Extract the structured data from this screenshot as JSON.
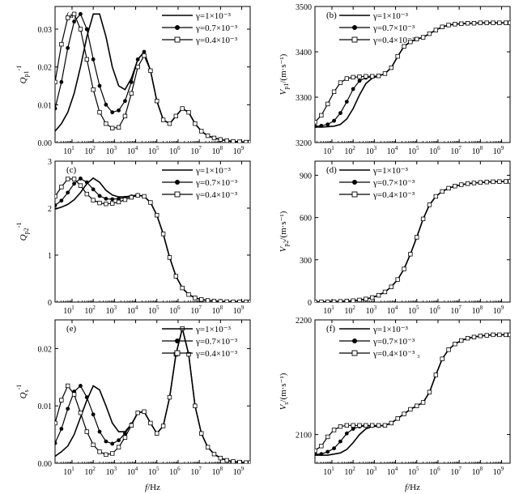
{
  "x_axis": {
    "label_var": "f",
    "label_unit": "/Hz",
    "decades": [
      1,
      2,
      3,
      4,
      5,
      6,
      7,
      8,
      9
    ],
    "range_log10": [
      0.2,
      9.4
    ]
  },
  "tick_base": "10",
  "panels": [
    {
      "id": "a",
      "tag": "(a)",
      "ylabel": "Q",
      "ylabel_sup": "-1",
      "ylabel_sub": "p1",
      "ylim": [
        0,
        0.036
      ],
      "yticks": [
        0,
        0.01,
        0.02,
        0.03
      ],
      "yticklabels": [
        "0.00",
        "0.01",
        "0.02",
        "0.03"
      ],
      "legend": [
        "γ=1×10⁻³",
        "γ=0.7×10⁻³",
        "γ=0.4×10⁻³"
      ]
    },
    {
      "id": "b",
      "tag": "(b)",
      "ylabel": "V",
      "ylabel_sub": "p1",
      "ylabel_unit": "/(m·s⁻¹)",
      "ylim": [
        3200,
        3500
      ],
      "yticks": [
        3200,
        3300,
        3400,
        3500
      ],
      "yticklabels": [
        "3200",
        "3300",
        "3400",
        "3500"
      ],
      "legend": [
        "γ=1×10⁻³",
        "γ=0.7×10⁻³",
        "γ=0.4×10⁻³"
      ]
    },
    {
      "id": "c",
      "tag": "(c)",
      "ylabel": "Q",
      "ylabel_sup": "-1",
      "ylabel_sub": "p2",
      "ylim": [
        0,
        3
      ],
      "yticks": [
        0,
        1,
        2,
        3
      ],
      "yticklabels": [
        "0",
        "1",
        "2",
        "3"
      ],
      "legend": [
        "γ=1×10⁻³",
        "γ=0.7×10⁻³",
        "γ=0.4×10⁻³"
      ]
    },
    {
      "id": "d",
      "tag": "(d)",
      "ylabel": "V",
      "ylabel_sub": "p2",
      "ylabel_unit": "/(m·s⁻¹)",
      "ylim": [
        0,
        1000
      ],
      "yticks": [
        0,
        300,
        600,
        900
      ],
      "yticklabels": [
        "0",
        "300",
        "600",
        "900"
      ],
      "legend": [
        "γ=1×10⁻³",
        "γ=0.7×10⁻³",
        "γ=0.4×10⁻³"
      ]
    },
    {
      "id": "e",
      "tag": "(e)",
      "ylabel": "Q",
      "ylabel_sup": "-1",
      "ylabel_sub": "s",
      "ylim": [
        0,
        0.025
      ],
      "yticks": [
        0,
        0.01,
        0.02
      ],
      "yticklabels": [
        "0.00",
        "0.01",
        "0.02"
      ],
      "legend": [
        "γ=1×10⁻³",
        "γ=0.7×10⁻³",
        "γ=0.4×10⁻³"
      ]
    },
    {
      "id": "f",
      "tag": "(f)",
      "ylabel": "V",
      "ylabel_sub": "s",
      "ylabel_unit": "/(m·s⁻¹)",
      "ylim": [
        2075,
        2200
      ],
      "yticks": [
        2100,
        2200
      ],
      "yticklabels": [
        "2100",
        "2200"
      ],
      "legend": [
        "γ=1×10⁻³",
        "γ=0.7×10⁻³",
        "γ=0.4×10⁻³ ₃"
      ]
    }
  ],
  "chart_data": [
    {
      "panel": "a",
      "type": "line",
      "x_scale": "log10",
      "title": "(a)",
      "xlabel": "f/Hz",
      "ylabel": "Q_p1^-1",
      "ylim": [
        0,
        0.036
      ],
      "x": [
        0.2,
        0.5,
        0.8,
        1.1,
        1.4,
        1.7,
        2.0,
        2.3,
        2.6,
        2.9,
        3.2,
        3.5,
        3.8,
        4.1,
        4.4,
        4.7,
        5.0,
        5.3,
        5.6,
        5.9,
        6.2,
        6.5,
        6.8,
        7.1,
        7.4,
        7.7,
        8.0,
        8.3,
        8.6,
        8.9,
        9.2,
        9.4
      ],
      "series": [
        {
          "name": "γ=1×10⁻³",
          "marker": "none",
          "values": [
            0.003,
            0.005,
            0.008,
            0.013,
            0.02,
            0.028,
            0.034,
            0.034,
            0.028,
            0.02,
            0.015,
            0.014,
            0.017,
            0.022,
            0.024,
            0.019,
            0.011,
            0.006,
            0.005,
            0.007,
            0.009,
            0.008,
            0.005,
            0.003,
            0.0018,
            0.0012,
            0.0008,
            0.0005,
            0.0003,
            0.0002,
            0.0001,
            0.0001
          ]
        },
        {
          "name": "γ=0.7×10⁻³",
          "marker": "filled-circle",
          "values": [
            0.009,
            0.016,
            0.025,
            0.032,
            0.034,
            0.03,
            0.022,
            0.015,
            0.01,
            0.008,
            0.0085,
            0.011,
            0.016,
            0.022,
            0.024,
            0.019,
            0.011,
            0.006,
            0.005,
            0.007,
            0.009,
            0.008,
            0.005,
            0.003,
            0.0018,
            0.0012,
            0.0008,
            0.0005,
            0.0003,
            0.0002,
            0.0001,
            0.0001
          ]
        },
        {
          "name": "γ=0.4×10⁻³",
          "marker": "open-square",
          "values": [
            0.016,
            0.026,
            0.033,
            0.034,
            0.03,
            0.022,
            0.014,
            0.008,
            0.005,
            0.0038,
            0.004,
            0.007,
            0.013,
            0.02,
            0.023,
            0.019,
            0.011,
            0.006,
            0.005,
            0.007,
            0.009,
            0.008,
            0.005,
            0.003,
            0.0018,
            0.0012,
            0.0008,
            0.0005,
            0.0003,
            0.0002,
            0.0001,
            0.0001
          ]
        }
      ]
    },
    {
      "panel": "b",
      "type": "line",
      "x_scale": "log10",
      "title": "(b)",
      "xlabel": "f/Hz",
      "ylabel": "V_p1/(m·s⁻¹)",
      "ylim": [
        3200,
        3500
      ],
      "x": [
        0.2,
        0.5,
        0.8,
        1.1,
        1.4,
        1.7,
        2.0,
        2.3,
        2.6,
        2.9,
        3.2,
        3.5,
        3.8,
        4.1,
        4.4,
        4.7,
        5.0,
        5.3,
        5.6,
        5.9,
        6.2,
        6.5,
        6.8,
        7.1,
        7.4,
        7.7,
        8.0,
        8.3,
        8.6,
        8.9,
        9.2,
        9.4
      ],
      "series": [
        {
          "name": "γ=1×10⁻³",
          "marker": "none",
          "values": [
            3234,
            3234,
            3235,
            3236,
            3240,
            3252,
            3275,
            3305,
            3330,
            3342,
            3347,
            3352,
            3365,
            3390,
            3412,
            3422,
            3428,
            3432,
            3440,
            3448,
            3455,
            3459,
            3461,
            3462,
            3463,
            3463,
            3464,
            3464,
            3464,
            3464,
            3464,
            3464
          ]
        },
        {
          "name": "γ=0.7×10⁻³",
          "marker": "filled-circle",
          "values": [
            3236,
            3237,
            3240,
            3248,
            3265,
            3290,
            3318,
            3336,
            3343,
            3345,
            3347,
            3352,
            3365,
            3390,
            3412,
            3422,
            3428,
            3432,
            3440,
            3448,
            3455,
            3459,
            3461,
            3462,
            3463,
            3463,
            3464,
            3464,
            3464,
            3464,
            3464,
            3464
          ]
        },
        {
          "name": "γ=0.4×10⁻³",
          "marker": "open-square",
          "values": [
            3245,
            3260,
            3285,
            3312,
            3332,
            3341,
            3344,
            3345,
            3346,
            3346,
            3347,
            3352,
            3365,
            3390,
            3412,
            3422,
            3428,
            3432,
            3440,
            3448,
            3455,
            3459,
            3461,
            3462,
            3463,
            3463,
            3464,
            3464,
            3464,
            3464,
            3464,
            3464
          ]
        }
      ]
    },
    {
      "panel": "c",
      "type": "line",
      "x_scale": "log10",
      "title": "(c)",
      "xlabel": "f/Hz",
      "ylabel": "Q_p2^-1",
      "ylim": [
        0,
        3
      ],
      "x": [
        0.2,
        0.5,
        0.8,
        1.1,
        1.4,
        1.7,
        2.0,
        2.3,
        2.6,
        2.9,
        3.2,
        3.5,
        3.8,
        4.1,
        4.4,
        4.7,
        5.0,
        5.3,
        5.6,
        5.9,
        6.2,
        6.5,
        6.8,
        7.1,
        7.4,
        7.7,
        8.0,
        8.3,
        8.6,
        8.9,
        9.2,
        9.4
      ],
      "series": [
        {
          "name": "γ=1×10⁻³",
          "marker": "none",
          "values": [
            1.98,
            2.02,
            2.08,
            2.18,
            2.33,
            2.52,
            2.64,
            2.55,
            2.38,
            2.28,
            2.24,
            2.24,
            2.26,
            2.28,
            2.25,
            2.12,
            1.85,
            1.45,
            0.95,
            0.55,
            0.3,
            0.16,
            0.09,
            0.055,
            0.035,
            0.022,
            0.014,
            0.009,
            0.006,
            0.004,
            0.003,
            0.002
          ]
        },
        {
          "name": "γ=0.7×10⁻³",
          "marker": "filled-circle",
          "values": [
            2.06,
            2.16,
            2.33,
            2.52,
            2.63,
            2.55,
            2.4,
            2.26,
            2.2,
            2.19,
            2.2,
            2.22,
            2.25,
            2.28,
            2.25,
            2.12,
            1.85,
            1.45,
            0.95,
            0.55,
            0.3,
            0.16,
            0.09,
            0.055,
            0.035,
            0.022,
            0.014,
            0.009,
            0.006,
            0.004,
            0.003,
            0.002
          ]
        },
        {
          "name": "γ=0.4×10⁻³",
          "marker": "open-square",
          "values": [
            2.25,
            2.45,
            2.62,
            2.62,
            2.48,
            2.3,
            2.17,
            2.11,
            2.09,
            2.1,
            2.13,
            2.18,
            2.23,
            2.27,
            2.25,
            2.12,
            1.85,
            1.45,
            0.95,
            0.55,
            0.3,
            0.16,
            0.09,
            0.055,
            0.035,
            0.022,
            0.014,
            0.009,
            0.006,
            0.004,
            0.003,
            0.002
          ]
        }
      ]
    },
    {
      "panel": "d",
      "type": "line",
      "x_scale": "log10",
      "title": "(d)",
      "xlabel": "f/Hz",
      "ylabel": "V_p2/(m·s⁻¹)",
      "ylim": [
        0,
        1000
      ],
      "x": [
        0.2,
        0.5,
        0.8,
        1.1,
        1.4,
        1.7,
        2.0,
        2.3,
        2.6,
        2.9,
        3.2,
        3.5,
        3.8,
        4.1,
        4.4,
        4.7,
        5.0,
        5.3,
        5.6,
        5.9,
        6.2,
        6.5,
        6.8,
        7.1,
        7.4,
        7.7,
        8.0,
        8.3,
        8.6,
        8.9,
        9.2,
        9.4
      ],
      "series": [
        {
          "name": "γ=1×10⁻³",
          "marker": "none",
          "values": [
            1,
            2,
            2,
            3,
            5,
            7,
            10,
            15,
            22,
            32,
            48,
            72,
            108,
            160,
            235,
            340,
            460,
            590,
            690,
            750,
            785,
            808,
            823,
            833,
            840,
            845,
            849,
            852,
            854,
            855,
            856,
            857
          ]
        },
        {
          "name": "γ=0.7×10⁻³",
          "marker": "filled-circle",
          "values": [
            1,
            2,
            2,
            3,
            5,
            7,
            10,
            15,
            22,
            32,
            48,
            72,
            108,
            160,
            235,
            340,
            460,
            590,
            690,
            750,
            785,
            808,
            823,
            833,
            840,
            845,
            849,
            852,
            854,
            855,
            856,
            857
          ]
        },
        {
          "name": "γ=0.4×10⁻³",
          "marker": "open-square",
          "values": [
            1,
            2,
            2,
            3,
            5,
            7,
            10,
            15,
            22,
            32,
            48,
            72,
            108,
            160,
            235,
            340,
            460,
            590,
            690,
            750,
            785,
            808,
            823,
            833,
            840,
            845,
            849,
            852,
            854,
            855,
            856,
            857
          ]
        }
      ]
    },
    {
      "panel": "e",
      "type": "line",
      "x_scale": "log10",
      "title": "(e)",
      "xlabel": "f/Hz",
      "ylabel": "Q_s^-1",
      "ylim": [
        0,
        0.025
      ],
      "x": [
        0.2,
        0.5,
        0.8,
        1.1,
        1.4,
        1.7,
        2.0,
        2.3,
        2.6,
        2.9,
        3.2,
        3.5,
        3.8,
        4.1,
        4.4,
        4.7,
        5.0,
        5.3,
        5.6,
        5.9,
        6.2,
        6.5,
        6.8,
        7.1,
        7.4,
        7.7,
        8.0,
        8.3,
        8.6,
        8.9,
        9.2,
        9.4
      ],
      "series": [
        {
          "name": "γ=1×10⁻³",
          "marker": "none",
          "values": [
            0.0012,
            0.002,
            0.003,
            0.005,
            0.008,
            0.011,
            0.0135,
            0.0128,
            0.01,
            0.007,
            0.0055,
            0.0055,
            0.0068,
            0.0088,
            0.009,
            0.007,
            0.0052,
            0.0065,
            0.0115,
            0.019,
            0.0235,
            0.019,
            0.01,
            0.0052,
            0.0028,
            0.0016,
            0.0009,
            0.0005,
            0.0003,
            0.0002,
            0.0001,
            0.0001
          ]
        },
        {
          "name": "γ=0.7×10⁻³",
          "marker": "filled-circle",
          "values": [
            0.0035,
            0.006,
            0.0095,
            0.0125,
            0.0135,
            0.0115,
            0.0085,
            0.0055,
            0.0038,
            0.0034,
            0.004,
            0.0052,
            0.0068,
            0.0088,
            0.009,
            0.007,
            0.0052,
            0.0065,
            0.0115,
            0.019,
            0.0235,
            0.019,
            0.01,
            0.0052,
            0.0028,
            0.0016,
            0.0009,
            0.0005,
            0.0003,
            0.0002,
            0.0001,
            0.0001
          ]
        },
        {
          "name": "γ=0.4×10⁻³",
          "marker": "open-square",
          "values": [
            0.007,
            0.011,
            0.0135,
            0.012,
            0.0088,
            0.0055,
            0.0032,
            0.002,
            0.0015,
            0.0017,
            0.0028,
            0.0045,
            0.0066,
            0.0088,
            0.009,
            0.007,
            0.0052,
            0.0065,
            0.0115,
            0.019,
            0.0235,
            0.019,
            0.01,
            0.0052,
            0.0028,
            0.0016,
            0.0009,
            0.0005,
            0.0003,
            0.0002,
            0.0001,
            0.0001
          ]
        }
      ]
    },
    {
      "panel": "f",
      "type": "line",
      "x_scale": "log10",
      "title": "(f)",
      "xlabel": "f/Hz",
      "ylabel": "V_s/(m·s⁻¹)",
      "ylim": [
        2075,
        2200
      ],
      "x": [
        0.2,
        0.5,
        0.8,
        1.1,
        1.4,
        1.7,
        2.0,
        2.3,
        2.6,
        2.9,
        3.2,
        3.5,
        3.8,
        4.1,
        4.4,
        4.7,
        5.0,
        5.3,
        5.6,
        5.9,
        6.2,
        6.5,
        6.8,
        7.1,
        7.4,
        7.7,
        8.0,
        8.3,
        8.6,
        8.9,
        9.2,
        9.4
      ],
      "series": [
        {
          "name": "γ=1×10⁻³",
          "marker": "none",
          "values": [
            2082,
            2082,
            2082,
            2083,
            2084,
            2087,
            2093,
            2100,
            2105,
            2107,
            2107.5,
            2108,
            2110,
            2114,
            2118,
            2122,
            2125,
            2128,
            2137,
            2152,
            2166,
            2174,
            2179,
            2182,
            2184,
            2185,
            2186,
            2186.5,
            2187,
            2187,
            2187,
            2187
          ]
        },
        {
          "name": "γ=0.7×10⁻³",
          "marker": "filled-circle",
          "values": [
            2083,
            2083,
            2085,
            2088,
            2094,
            2101,
            2105,
            2107,
            2107.5,
            2107.5,
            2107.5,
            2108,
            2110,
            2114,
            2118,
            2122,
            2125,
            2128,
            2137,
            2152,
            2166,
            2174,
            2179,
            2182,
            2184,
            2185,
            2186,
            2186.5,
            2187,
            2187,
            2187,
            2187
          ]
        },
        {
          "name": "γ=0.4×10⁻³",
          "marker": "open-square",
          "values": [
            2086,
            2090,
            2098,
            2104,
            2107,
            2108,
            2108,
            2108,
            2108,
            2108,
            2108,
            2108,
            2110,
            2114,
            2118,
            2122,
            2125,
            2128,
            2137,
            2152,
            2166,
            2174,
            2179,
            2182,
            2184,
            2185,
            2186,
            2186.5,
            2187,
            2187,
            2187,
            2187
          ]
        }
      ]
    }
  ]
}
